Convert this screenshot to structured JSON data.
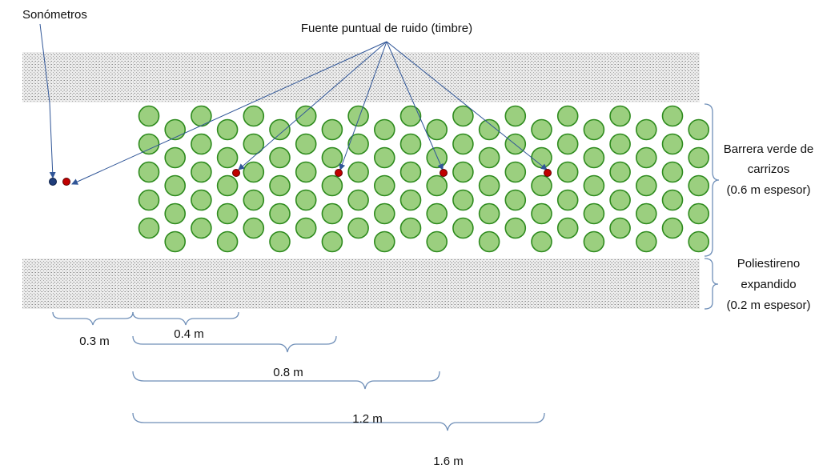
{
  "labels": {
    "sonometros": "Sonómetros",
    "fuente": "Fuente puntual de ruido (timbre)",
    "barrera_1": "Barrera verde de",
    "barrera_2": "carrizos",
    "barrera_3": "(0.6 m espesor)",
    "poli_1": "Poliestireno",
    "poli_2": "expandido",
    "poli_3": "(0.2 m espesor)"
  },
  "distances": [
    {
      "id": "d03",
      "label": "0.3 m"
    },
    {
      "id": "d04",
      "label": "0.4 m"
    },
    {
      "id": "d08",
      "label": "0.8 m"
    },
    {
      "id": "d12",
      "label": "1.2 m"
    },
    {
      "id": "d16",
      "label": "1.6 m"
    }
  ],
  "colors": {
    "reed_fill": "#9bcf7f",
    "reed_stroke": "#2e8b1e",
    "source_dot": "#c00000",
    "meter_dot": "#1f3d7a",
    "arrow": "#2f5597",
    "brace": "#6f8fb8",
    "foam": "#d9d9d9"
  },
  "icons": {
    "reed": "circle",
    "source": "red-dot",
    "meter": "blue-dot"
  }
}
